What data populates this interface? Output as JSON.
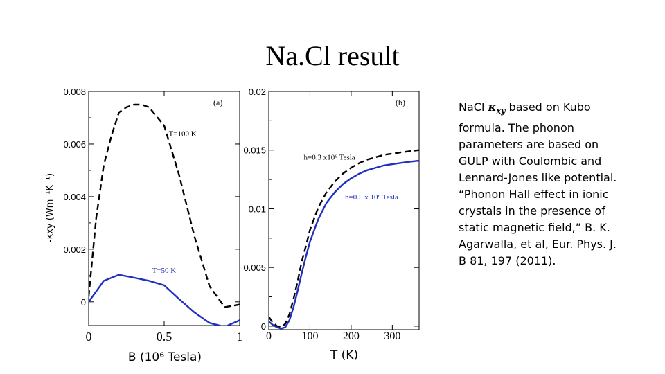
{
  "slide": {
    "title": "Na.Cl result",
    "caption": {
      "prefix": "NaCl",
      "kappa_symbol": "κ",
      "kappa_subscript": "xy",
      "rest": "based on Kubo formula.  The phonon parameters are based on GULP with Coulombic and Lennard-Jones like potential. “Phonon Hall effect in ionic crystals in the presence of static magnetic field,” B. K. Agarwalla, et al, Eur. Phys. J. B 81, 197 (2011)."
    }
  },
  "chart_data": [
    {
      "type": "line",
      "panel_label": "(a)",
      "xlabel": "B (10⁶ Tesla)",
      "ylabel": "-κxy (Wm⁻¹K⁻¹)",
      "xlim": [
        0,
        1
      ],
      "ylim": [
        -0.0009,
        0.008
      ],
      "xticks": [
        0,
        0.5,
        1
      ],
      "xtick_labels": [
        "0",
        "0.5",
        "1"
      ],
      "yticks": [
        0,
        0.002,
        0.004,
        0.006,
        0.008
      ],
      "ytick_labels": [
        "0",
        "0.002",
        "0.004",
        "0.006",
        "0.008"
      ],
      "series": [
        {
          "name": "T=100 K",
          "color": "#000000",
          "dash": "dashed",
          "x": [
            0,
            0.05,
            0.1,
            0.15,
            0.2,
            0.25,
            0.3,
            0.35,
            0.4,
            0.5,
            0.6,
            0.7,
            0.8,
            0.9,
            1.0
          ],
          "y": [
            0.0002,
            0.0032,
            0.0052,
            0.0063,
            0.0072,
            0.0074,
            0.0075,
            0.0075,
            0.0074,
            0.0067,
            0.0048,
            0.0025,
            0.0006,
            -0.0002,
            -0.0001
          ]
        },
        {
          "name": "T=50 K",
          "color": "#1f2fbf",
          "dash": "solid",
          "x": [
            0,
            0.1,
            0.2,
            0.3,
            0.4,
            0.5,
            0.6,
            0.7,
            0.8,
            0.9,
            1.0
          ],
          "y": [
            0.0,
            0.0008,
            0.00103,
            0.00092,
            0.0008,
            0.00063,
            0.0001,
            -0.0004,
            -0.0008,
            -0.00095,
            -0.0007
          ]
        }
      ],
      "annotations": [
        {
          "text": "T=100 K",
          "x": 0.53,
          "y": 0.0063,
          "color": "#000000"
        },
        {
          "text": "T=50 K",
          "x": 0.42,
          "y": 0.0011,
          "color": "#1f2fbf"
        }
      ],
      "grid": false
    },
    {
      "type": "line",
      "panel_label": "(b)",
      "xlabel": "T (K)",
      "ylabel": "",
      "xlim": [
        0,
        365
      ],
      "ylim": [
        -0.0003,
        0.02
      ],
      "xticks": [
        0,
        100,
        200,
        300
      ],
      "xtick_labels": [
        "0",
        "100",
        "200",
        "300"
      ],
      "yticks": [
        0,
        0.005,
        0.01,
        0.015,
        0.02
      ],
      "ytick_labels": [
        "0",
        "0.005",
        "0.01",
        "0.015",
        "0.02"
      ],
      "series": [
        {
          "name": "h=0.3 x10⁶ Tesla",
          "color": "#000000",
          "dash": "dashed",
          "x": [
            0,
            10,
            20,
            30,
            40,
            50,
            60,
            70,
            80,
            90,
            100,
            120,
            140,
            160,
            180,
            200,
            220,
            240,
            260,
            280,
            300,
            320,
            340,
            365
          ],
          "y": [
            0.0008,
            0.0003,
            0.0,
            -0.0001,
            0.0002,
            0.001,
            0.0023,
            0.0038,
            0.0055,
            0.0068,
            0.0082,
            0.0101,
            0.0114,
            0.0123,
            0.013,
            0.0135,
            0.0139,
            0.0142,
            0.0144,
            0.0146,
            0.0147,
            0.0148,
            0.0149,
            0.015
          ]
        },
        {
          "name": "h=0.5 x 10⁶ Tesla",
          "color": "#1f2fbf",
          "dash": "solid",
          "x": [
            0,
            10,
            20,
            30,
            40,
            50,
            60,
            70,
            80,
            90,
            100,
            120,
            140,
            160,
            180,
            200,
            220,
            240,
            260,
            280,
            300,
            320,
            340,
            365
          ],
          "y": [
            0.0004,
            0.0001,
            -0.0001,
            -0.0002,
            -0.0001,
            0.0005,
            0.0016,
            0.003,
            0.0045,
            0.0059,
            0.0072,
            0.0091,
            0.0105,
            0.0114,
            0.0121,
            0.0126,
            0.013,
            0.0133,
            0.0135,
            0.0137,
            0.0138,
            0.0139,
            0.014,
            0.0141
          ]
        }
      ],
      "annotations": [
        {
          "text": "h=0.3 x10⁶ Tesla",
          "x": 85,
          "y": 0.0142,
          "color": "#000000"
        },
        {
          "text": "h=0.5 x 10⁶ Tesla",
          "x": 185,
          "y": 0.0108,
          "color": "#1f2fbf"
        }
      ],
      "grid": false
    }
  ]
}
